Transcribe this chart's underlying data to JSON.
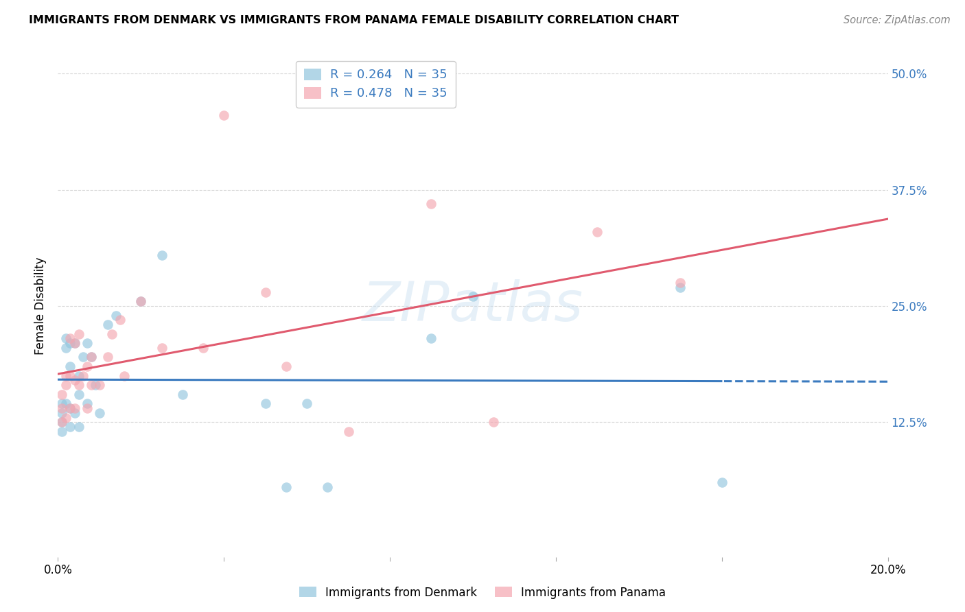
{
  "title": "IMMIGRANTS FROM DENMARK VS IMMIGRANTS FROM PANAMA FEMALE DISABILITY CORRELATION CHART",
  "source": "Source: ZipAtlas.com",
  "ylabel": "Female Disability",
  "xlim": [
    0.0,
    0.2
  ],
  "ylim": [
    -0.02,
    0.52
  ],
  "ytick_values": [
    0.125,
    0.25,
    0.375,
    0.5
  ],
  "xtick_values": [
    0.0,
    0.04,
    0.08,
    0.12,
    0.16,
    0.2
  ],
  "denmark_color": "#92c5de",
  "panama_color": "#f4a6b0",
  "denmark_line_color": "#3a7abf",
  "panama_line_color": "#e05a6e",
  "R_denmark": 0.264,
  "N_denmark": 35,
  "R_panama": 0.478,
  "N_panama": 35,
  "legend_label_denmark": "Immigrants from Denmark",
  "legend_label_panama": "Immigrants from Panama",
  "denmark_x": [
    0.001,
    0.001,
    0.001,
    0.001,
    0.002,
    0.002,
    0.002,
    0.003,
    0.003,
    0.003,
    0.003,
    0.004,
    0.004,
    0.005,
    0.005,
    0.005,
    0.006,
    0.007,
    0.007,
    0.008,
    0.009,
    0.01,
    0.012,
    0.014,
    0.02,
    0.025,
    0.03,
    0.05,
    0.055,
    0.06,
    0.065,
    0.09,
    0.1,
    0.15,
    0.16
  ],
  "denmark_y": [
    0.145,
    0.135,
    0.125,
    0.115,
    0.145,
    0.205,
    0.215,
    0.185,
    0.21,
    0.14,
    0.12,
    0.21,
    0.135,
    0.175,
    0.155,
    0.12,
    0.195,
    0.21,
    0.145,
    0.195,
    0.165,
    0.135,
    0.23,
    0.24,
    0.255,
    0.305,
    0.155,
    0.145,
    0.055,
    0.145,
    0.055,
    0.215,
    0.26,
    0.27,
    0.06
  ],
  "panama_x": [
    0.001,
    0.001,
    0.001,
    0.002,
    0.002,
    0.002,
    0.003,
    0.003,
    0.003,
    0.004,
    0.004,
    0.004,
    0.005,
    0.005,
    0.006,
    0.007,
    0.007,
    0.008,
    0.008,
    0.01,
    0.012,
    0.013,
    0.015,
    0.016,
    0.02,
    0.025,
    0.035,
    0.04,
    0.05,
    0.055,
    0.07,
    0.09,
    0.105,
    0.13,
    0.15
  ],
  "panama_y": [
    0.155,
    0.14,
    0.125,
    0.175,
    0.165,
    0.13,
    0.215,
    0.175,
    0.14,
    0.21,
    0.17,
    0.14,
    0.22,
    0.165,
    0.175,
    0.185,
    0.14,
    0.195,
    0.165,
    0.165,
    0.195,
    0.22,
    0.235,
    0.175,
    0.255,
    0.205,
    0.205,
    0.455,
    0.265,
    0.185,
    0.115,
    0.36,
    0.125,
    0.33,
    0.275
  ],
  "watermark": "ZIPatlas",
  "background_color": "#ffffff",
  "grid_color": "#d8d8d8",
  "legend_text_color": "#3a7abf",
  "right_axis_color": "#3a7abf"
}
